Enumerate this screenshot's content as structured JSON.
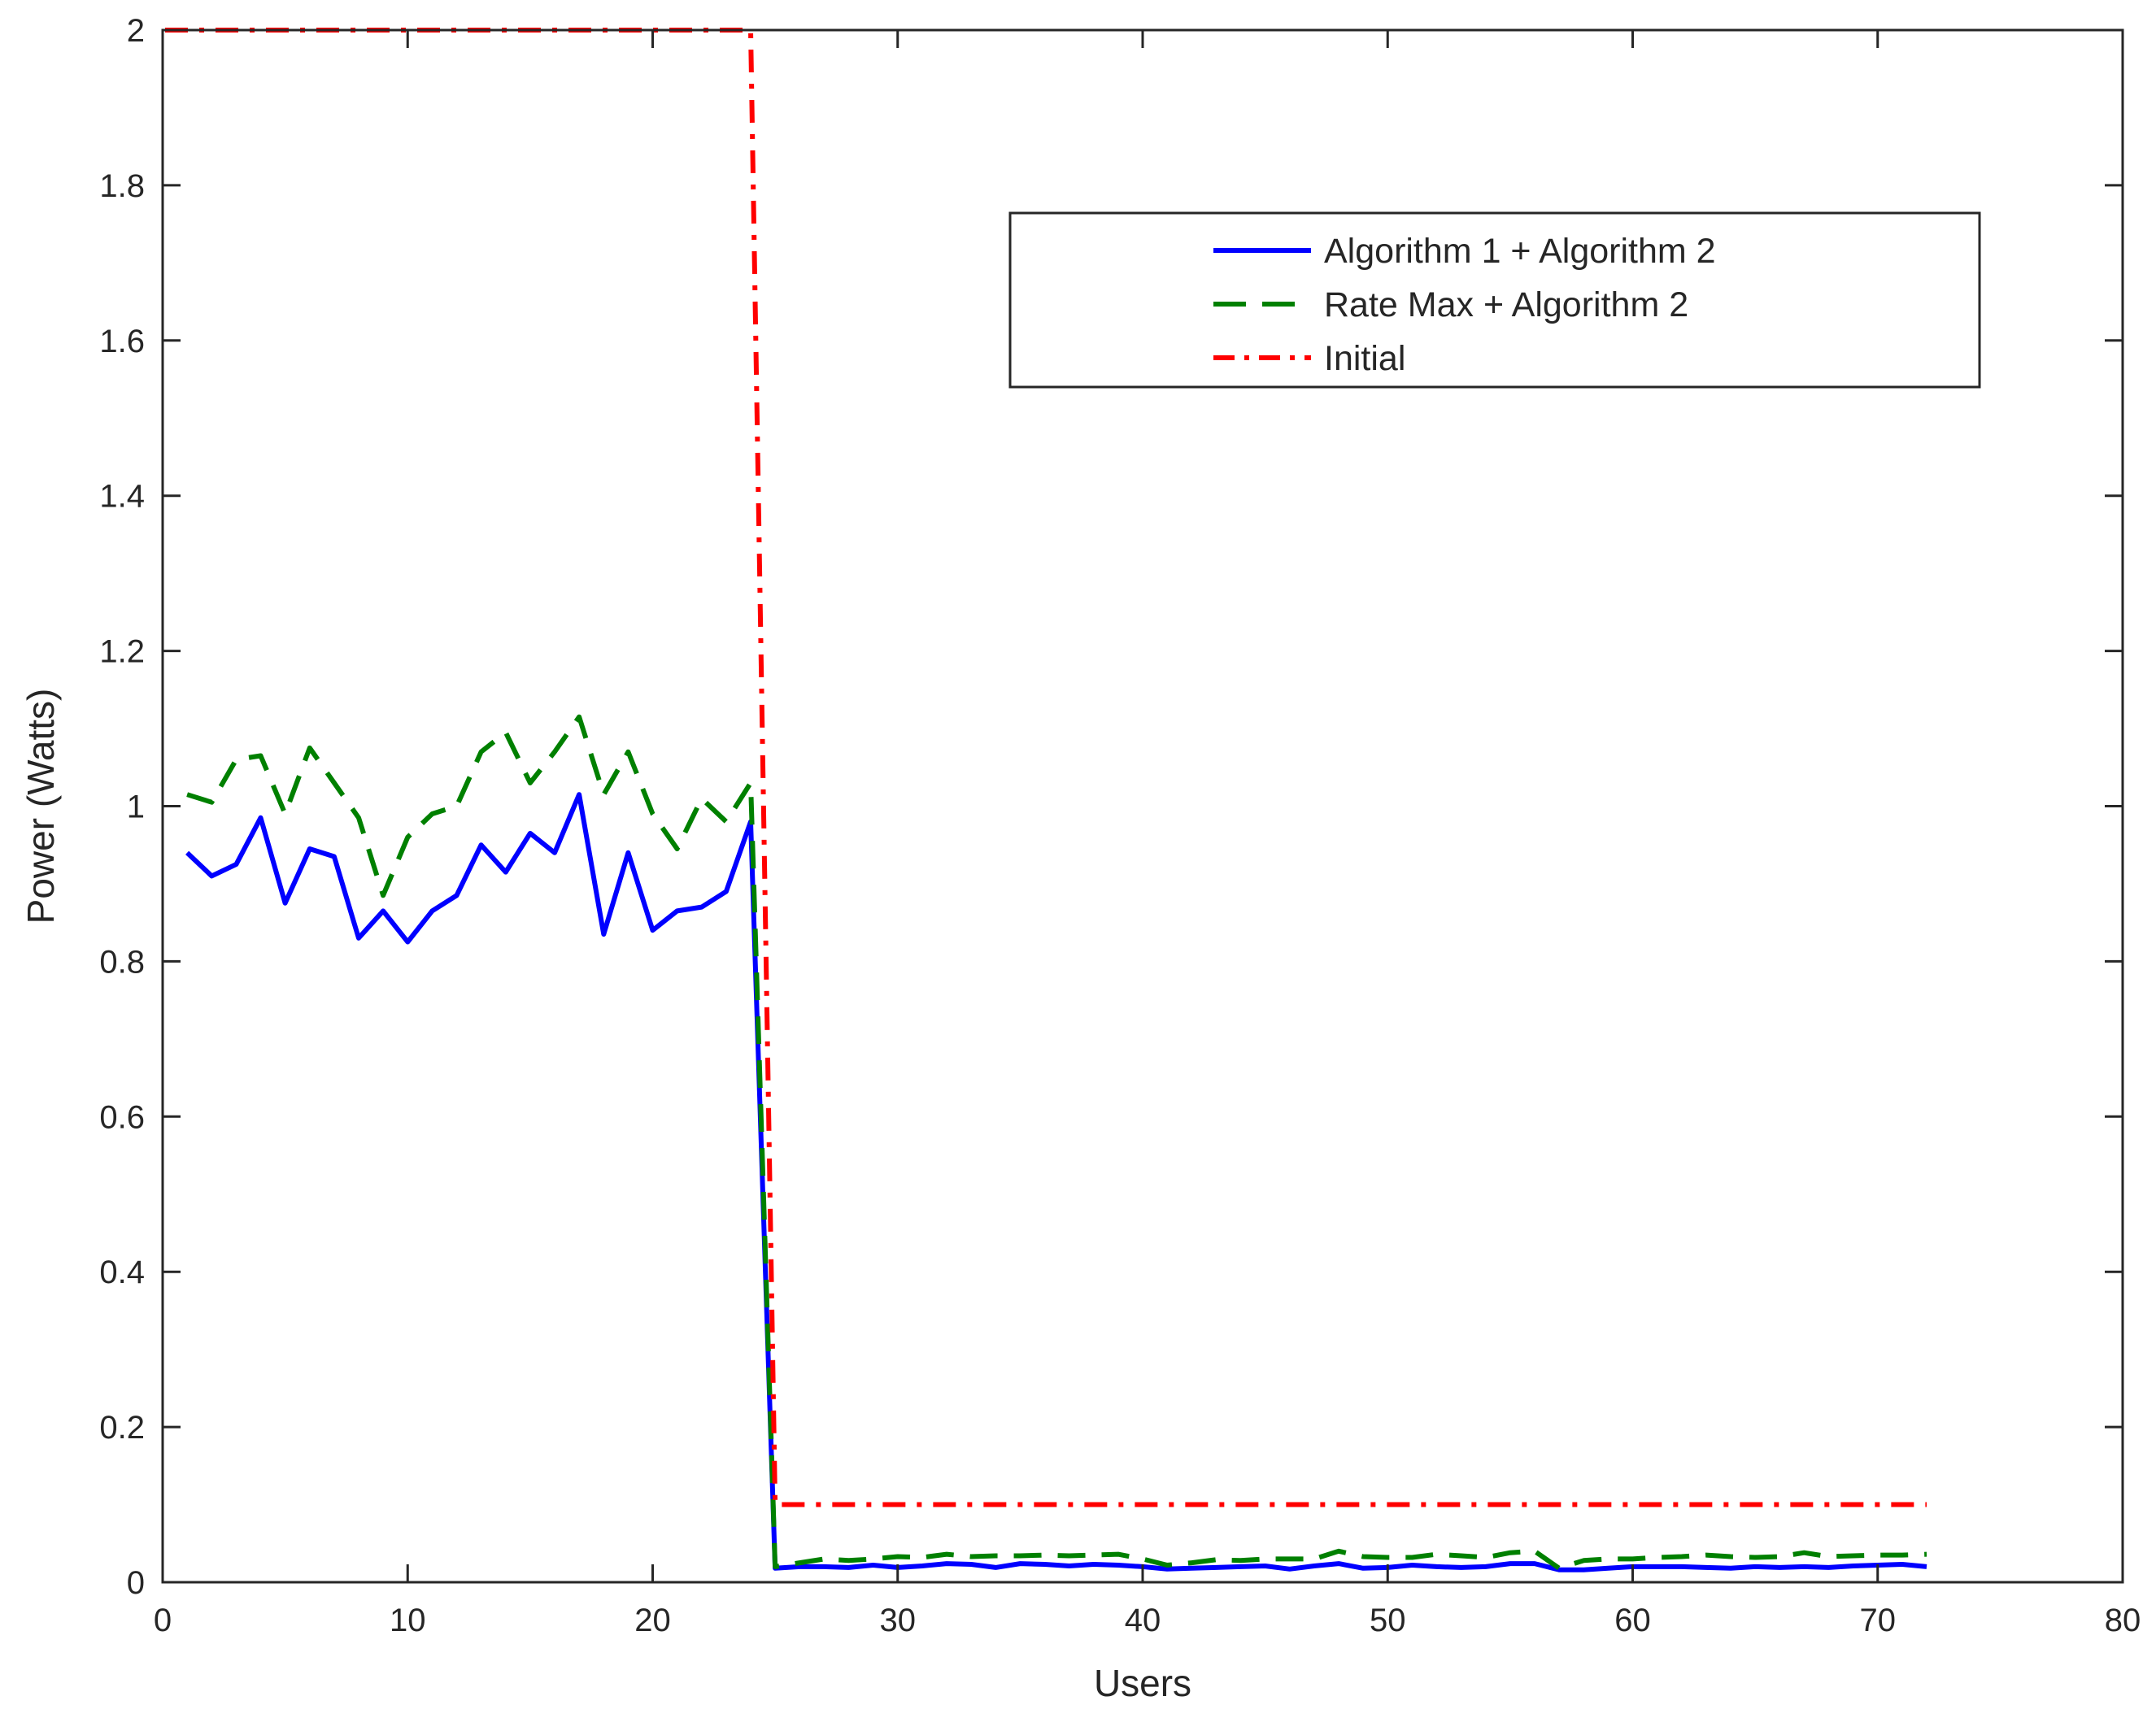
{
  "chart_data": {
    "type": "line",
    "title": "",
    "xlabel": "Users",
    "ylabel": "Power (Watts)",
    "xlim": [
      0,
      80
    ],
    "ylim": [
      0,
      2
    ],
    "xticks": [
      0,
      10,
      20,
      30,
      40,
      50,
      60,
      70,
      80
    ],
    "yticks": [
      0,
      0.2,
      0.4,
      0.6,
      0.8,
      1,
      1.2,
      1.4,
      1.6,
      1.8,
      2
    ],
    "grid": false,
    "legend_position": "top-right",
    "colors": {
      "blue": "#0000ff",
      "green": "#008000",
      "red": "#ff0000",
      "axis": "#262626"
    },
    "series": [
      {
        "name": "Algorithm 1 + Algorithm 2",
        "style": "solid",
        "color": "#0000ff",
        "x": [
          1,
          2,
          3,
          4,
          5,
          6,
          7,
          8,
          9,
          10,
          11,
          12,
          13,
          14,
          15,
          16,
          17,
          18,
          19,
          20,
          21,
          22,
          23,
          24,
          25,
          26,
          27,
          28,
          29,
          30,
          31,
          32,
          33,
          34,
          35,
          36,
          37,
          38,
          39,
          40,
          41,
          42,
          43,
          44,
          45,
          46,
          47,
          48,
          49,
          50,
          51,
          52,
          53,
          54,
          55,
          56,
          57,
          58,
          59,
          60,
          61,
          62,
          63,
          64,
          65,
          66,
          67,
          68,
          69,
          70,
          71,
          72
        ],
        "y": [
          0.94,
          0.91,
          0.925,
          0.985,
          0.875,
          0.945,
          0.935,
          0.83,
          0.865,
          0.825,
          0.865,
          0.885,
          0.95,
          0.915,
          0.965,
          0.94,
          1.015,
          0.835,
          0.94,
          0.84,
          0.865,
          0.87,
          0.89,
          0.98,
          0.018,
          0.02,
          0.02,
          0.019,
          0.022,
          0.019,
          0.021,
          0.024,
          0.023,
          0.019,
          0.024,
          0.023,
          0.021,
          0.023,
          0.022,
          0.02,
          0.017,
          0.018,
          0.019,
          0.02,
          0.021,
          0.017,
          0.021,
          0.024,
          0.018,
          0.019,
          0.022,
          0.02,
          0.019,
          0.02,
          0.024,
          0.024,
          0.016,
          0.016,
          0.018,
          0.02,
          0.02,
          0.02,
          0.019,
          0.018,
          0.02,
          0.019,
          0.02,
          0.019,
          0.021,
          0.022,
          0.023,
          0.02
        ]
      },
      {
        "name": "Rate Max + Algorithm 2",
        "style": "dashed",
        "color": "#008000",
        "x": [
          1,
          2,
          3,
          4,
          5,
          6,
          7,
          8,
          9,
          10,
          11,
          12,
          13,
          14,
          15,
          16,
          17,
          18,
          19,
          20,
          21,
          22,
          23,
          24,
          25,
          26,
          27,
          28,
          29,
          30,
          31,
          32,
          33,
          34,
          35,
          36,
          37,
          38,
          39,
          40,
          41,
          42,
          43,
          44,
          45,
          46,
          47,
          48,
          49,
          50,
          51,
          52,
          53,
          54,
          55,
          56,
          57,
          58,
          59,
          60,
          61,
          62,
          63,
          64,
          65,
          66,
          67,
          68,
          69,
          70,
          71,
          72
        ],
        "y": [
          1.015,
          1.005,
          1.06,
          1.065,
          0.99,
          1.075,
          1.03,
          0.985,
          0.885,
          0.96,
          0.99,
          1.0,
          1.07,
          1.095,
          1.03,
          1.07,
          1.115,
          1.015,
          1.07,
          0.99,
          0.945,
          1.01,
          0.98,
          1.03,
          0.02,
          0.025,
          0.03,
          0.028,
          0.03,
          0.033,
          0.032,
          0.036,
          0.033,
          0.034,
          0.034,
          0.035,
          0.034,
          0.035,
          0.036,
          0.03,
          0.022,
          0.025,
          0.029,
          0.028,
          0.03,
          0.03,
          0.03,
          0.04,
          0.033,
          0.032,
          0.032,
          0.036,
          0.034,
          0.032,
          0.038,
          0.04,
          0.018,
          0.028,
          0.03,
          0.03,
          0.032,
          0.033,
          0.035,
          0.033,
          0.032,
          0.033,
          0.038,
          0.033,
          0.034,
          0.035,
          0.035,
          0.036
        ]
      },
      {
        "name": "Initial",
        "style": "dashdot",
        "color": "#ff0000",
        "x": [
          0.1,
          24,
          25,
          72
        ],
        "y": [
          2,
          2,
          0.1,
          0.1
        ]
      }
    ]
  }
}
